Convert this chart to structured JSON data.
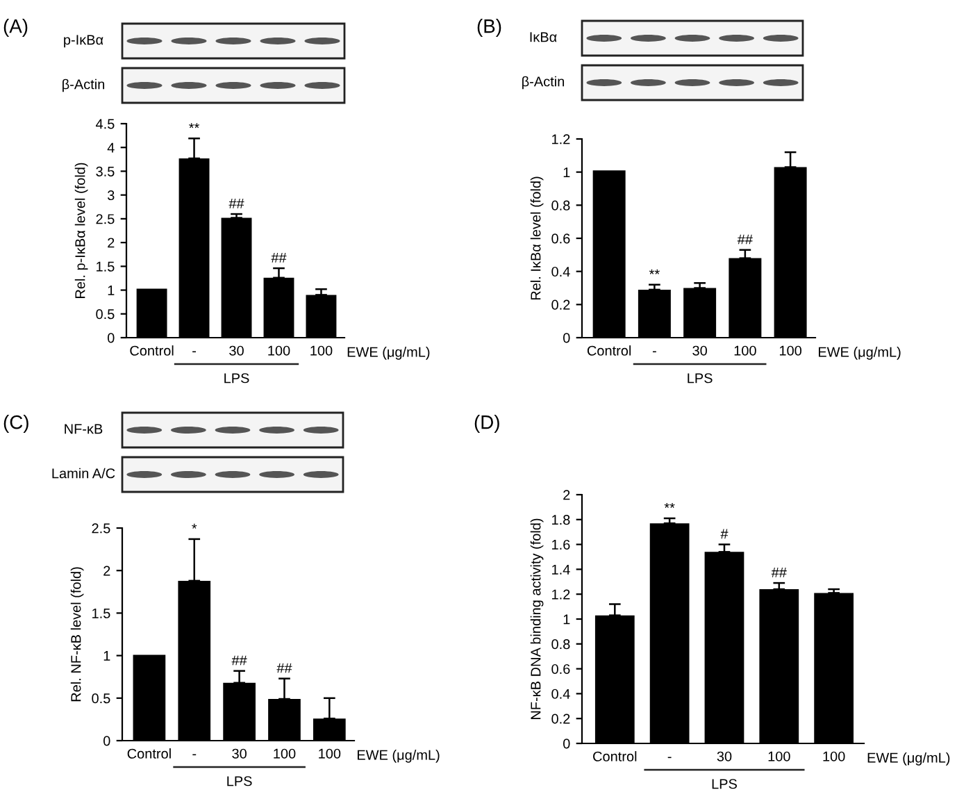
{
  "chart_data": [
    {
      "type": "bar",
      "title": "(A)",
      "ylabel": "Rel. p-IκBα level (fold)",
      "xlabel": "EWE (μg/mL)",
      "categories": [
        "Control",
        "-",
        "30",
        "100",
        "100"
      ],
      "values": [
        1.03,
        3.77,
        2.52,
        1.26,
        0.9
      ],
      "errors": [
        null,
        [
          3.77,
          4.19
        ],
        [
          2.52,
          2.6
        ],
        [
          1.26,
          1.46
        ],
        [
          0.9,
          1.02
        ]
      ],
      "color": "#000000",
      "ylim": [
        0,
        4.5
      ],
      "yticks": [
        0,
        0.5,
        1,
        1.5,
        2,
        2.5,
        3,
        3.5,
        4,
        4.5
      ],
      "annotations": [
        "p-IκBα",
        "β-Actin",
        "LPS",
        {
          "text": "**",
          "x": "-",
          "y": 4.19
        },
        {
          "text": "##",
          "x": "30",
          "y": 2.6
        },
        {
          "text": "##",
          "x": "100",
          "y": 1.46
        }
      ]
    },
    {
      "type": "bar",
      "title": "(B)",
      "ylabel": "Rel. IκBα level (fold)",
      "xlabel": "EWE (μg/mL)",
      "categories": [
        "Control",
        "-",
        "30",
        "100",
        "100"
      ],
      "values": [
        1.01,
        0.29,
        0.3,
        0.48,
        1.03
      ],
      "errors": [
        null,
        [
          0.29,
          0.32
        ],
        [
          0.3,
          0.33
        ],
        [
          0.48,
          0.53
        ],
        [
          1.03,
          1.12
        ]
      ],
      "color": "#000000",
      "ylim": [
        0,
        1.2
      ],
      "yticks": [
        0,
        0.2,
        0.4,
        0.6,
        0.8,
        1,
        1.2
      ],
      "annotations": [
        "IκBα",
        "β-Actin",
        "LPS",
        {
          "text": "**",
          "x": "-",
          "y": 0.32
        },
        {
          "text": "##",
          "x": "100",
          "y": 0.53
        }
      ]
    },
    {
      "type": "bar",
      "title": "(C)",
      "ylabel": "Rel. NF-κB level (fold)",
      "xlabel": "EWE (μg/mL)",
      "categories": [
        "Control",
        "-",
        "30",
        "100",
        "100"
      ],
      "values": [
        1.01,
        1.88,
        0.68,
        0.49,
        0.26
      ],
      "errors": [
        null,
        [
          1.88,
          2.37
        ],
        [
          0.68,
          0.82
        ],
        [
          0.49,
          0.73
        ],
        [
          0.26,
          0.5
        ]
      ],
      "color": "#000000",
      "ylim": [
        0,
        2.5
      ],
      "yticks": [
        0,
        0.5,
        1,
        1.5,
        2,
        2.5
      ],
      "annotations": [
        "NF-κB",
        "Lamin A/C",
        "LPS",
        {
          "text": "*",
          "x": "-",
          "y": 2.37
        },
        {
          "text": "##",
          "x": "30",
          "y": 0.82
        },
        {
          "text": "##",
          "x": "100",
          "y": 0.73
        }
      ]
    },
    {
      "type": "bar",
      "title": "(D)",
      "ylabel": "NF-κB DNA binding activity (fold)",
      "xlabel": "EWE (μg/mL)",
      "categories": [
        "Control",
        "-",
        "30",
        "100",
        "100"
      ],
      "values": [
        1.03,
        1.77,
        1.54,
        1.24,
        1.21
      ],
      "errors": [
        [
          1.03,
          1.12
        ],
        [
          1.77,
          1.81
        ],
        [
          1.54,
          1.6
        ],
        [
          1.24,
          1.29
        ],
        [
          1.21,
          1.24
        ]
      ],
      "color": "#000000",
      "ylim": [
        0,
        2
      ],
      "yticks": [
        0,
        0.2,
        0.4,
        0.6,
        0.8,
        1,
        1.2,
        1.4,
        1.6,
        1.8,
        2
      ],
      "annotations": [
        "LPS",
        {
          "text": "**",
          "x": "-",
          "y": 1.81
        },
        {
          "text": "#",
          "x": "30",
          "y": 1.6
        },
        {
          "text": "##",
          "x": "100",
          "y": 1.29
        }
      ]
    }
  ]
}
